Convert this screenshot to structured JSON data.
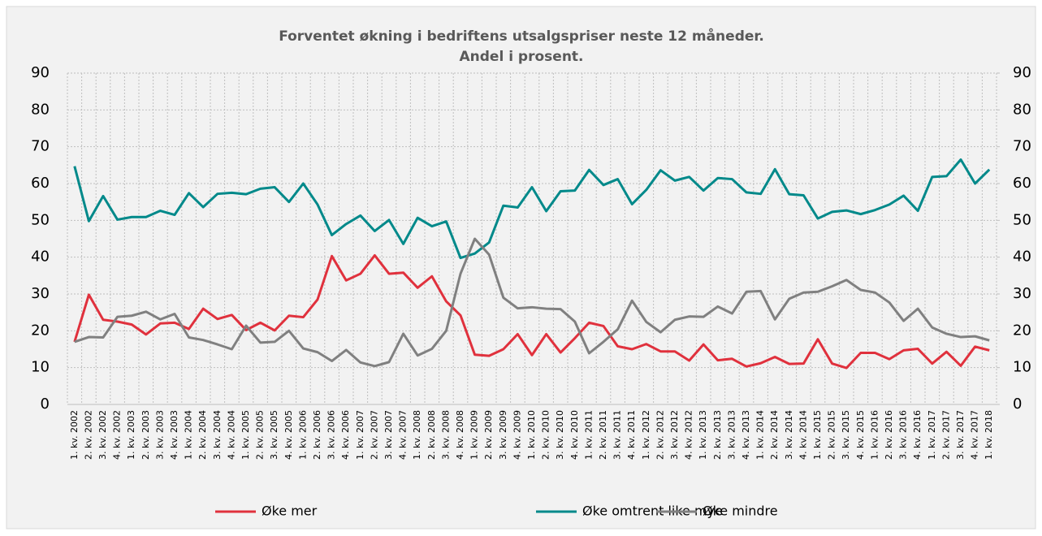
{
  "chart_data": {
    "type": "line",
    "title": "Forventet økning i bedriftens utsalgspriser neste 12 måneder.",
    "subtitle": "Andel i prosent.",
    "categories": [
      "1. kv. 2002",
      "2. kv. 2002",
      "3. kv. 2002",
      "4. kv. 2002",
      "1. kv. 2003",
      "2. kv. 2003",
      "3. kv. 2003",
      "4. kv. 2003",
      "1. kv. 2004",
      "2. kv. 2004",
      "3. kv. 2004",
      "4. kv. 2004",
      "1. kv. 2005",
      "2. kv. 2005",
      "3. kv. 2005",
      "4. kv. 2005",
      "1. kv. 2006",
      "2. kv. 2006",
      "3. kv. 2006",
      "4. kv. 2006",
      "1. kv. 2007",
      "2. kv. 2007",
      "3. kv. 2007",
      "4. kv. 2007",
      "1. kv. 2008",
      "2. kv. 2008",
      "3. kv. 2008",
      "4. kv. 2008",
      "1. kv. 2009",
      "2. kv. 2009",
      "3. kv. 2009",
      "4. kv. 2009",
      "1. kv. 2010",
      "2. kv. 2010",
      "3. kv. 2010",
      "4. kv. 2010",
      "1. kv. 2011",
      "2. kv. 2011",
      "3. kv. 2011",
      "4. kv. 2011",
      "1. kv. 2012",
      "2. kv. 2012",
      "3. kv. 2012",
      "4. kv. 2012",
      "1. kv. 2013",
      "2. kv. 2013",
      "3. kv. 2013",
      "4. kv. 2013",
      "1. kv. 2014",
      "2. kv. 2014",
      "3. kv. 2014",
      "4. kv. 2014",
      "1. kv. 2015",
      "2. kv. 2015",
      "3. kv. 2015",
      "4. kv. 2015",
      "1. kv. 2016",
      "2. kv. 2016",
      "3. kv. 2016",
      "4. kv. 2016",
      "1. kv. 2017",
      "2. kv. 2017",
      "3. kv. 2017",
      "4. kv. 2017",
      "1. kv. 2018"
    ],
    "series": [
      {
        "name": "Øke mer",
        "color": "#e0313d",
        "values": [
          17,
          29.8,
          23,
          22.5,
          21.7,
          19,
          22,
          22.2,
          20.5,
          26,
          23.2,
          24.3,
          20.2,
          22.2,
          20.1,
          24.1,
          23.7,
          28.5,
          40.3,
          33.7,
          35.5,
          40.5,
          35.5,
          35.8,
          31.7,
          34.8,
          28,
          24.2,
          13.5,
          13.2,
          15,
          19.1,
          13.4,
          19.1,
          14.1,
          18,
          22.2,
          21.3,
          15.8,
          15,
          16.4,
          14.4,
          14.4,
          11.9,
          16.3,
          12,
          12.4,
          10.3,
          11.2,
          12.9,
          11,
          11.1,
          17.7,
          11.1,
          9.9,
          14,
          14,
          12.3,
          14.7,
          15.1,
          11.1,
          14.3,
          10.5,
          15.7,
          14.7
        ]
      },
      {
        "name": "Øke omtrent like mye",
        "color": "#00898a",
        "values": [
          64.7,
          49.8,
          56.6,
          50.2,
          50.9,
          50.9,
          52.6,
          51.5,
          57.4,
          53.6,
          57.2,
          57.5,
          57.1,
          58.6,
          59,
          55,
          60,
          54.3,
          46,
          49,
          51.3,
          47.1,
          50.1,
          43.6,
          50.7,
          48.4,
          49.7,
          39.8,
          41,
          44,
          54,
          53.5,
          59,
          52.5,
          57.9,
          58.1,
          63.7,
          59.6,
          61.2,
          54.4,
          58.3,
          63.6,
          60.8,
          61.8,
          58.1,
          61.5,
          61.2,
          57.6,
          57.2,
          63.9,
          57.1,
          56.8,
          50.5,
          52.3,
          52.7,
          51.7,
          52.8,
          54.3,
          56.7,
          52.6,
          61.8,
          62,
          66.5,
          60,
          63.8
        ]
      },
      {
        "name": "Øke mindre",
        "color": "#808080",
        "values": [
          17,
          18.3,
          18.2,
          23.8,
          24.1,
          25.2,
          23.1,
          24.6,
          18.2,
          17.5,
          16.3,
          15,
          21.4,
          16.8,
          17,
          20,
          15.2,
          14.2,
          11.8,
          14.8,
          11.4,
          10.4,
          11.5,
          19.2,
          13.3,
          15.1,
          20,
          35.5,
          45,
          40.7,
          29,
          26.1,
          26.4,
          26,
          25.9,
          22.5,
          13.9,
          17,
          20.4,
          28.2,
          22.4,
          19.6,
          23,
          23.9,
          23.8,
          26.6,
          24.7,
          30.6,
          30.8,
          23.1,
          28.7,
          30.4,
          30.6,
          32.1,
          33.8,
          31.1,
          30.4,
          27.7,
          22.7,
          26,
          20.9,
          19.2,
          18.3,
          18.5,
          17.4
        ]
      }
    ],
    "ylim": [
      0,
      90
    ],
    "yticks": [
      0,
      10,
      20,
      30,
      40,
      50,
      60,
      70,
      80,
      90
    ],
    "y2lim": [
      0,
      90
    ],
    "y2ticks": [
      0,
      10,
      20,
      30,
      40,
      50,
      60,
      70,
      80,
      90
    ],
    "grid": true,
    "legend": "bottom"
  }
}
